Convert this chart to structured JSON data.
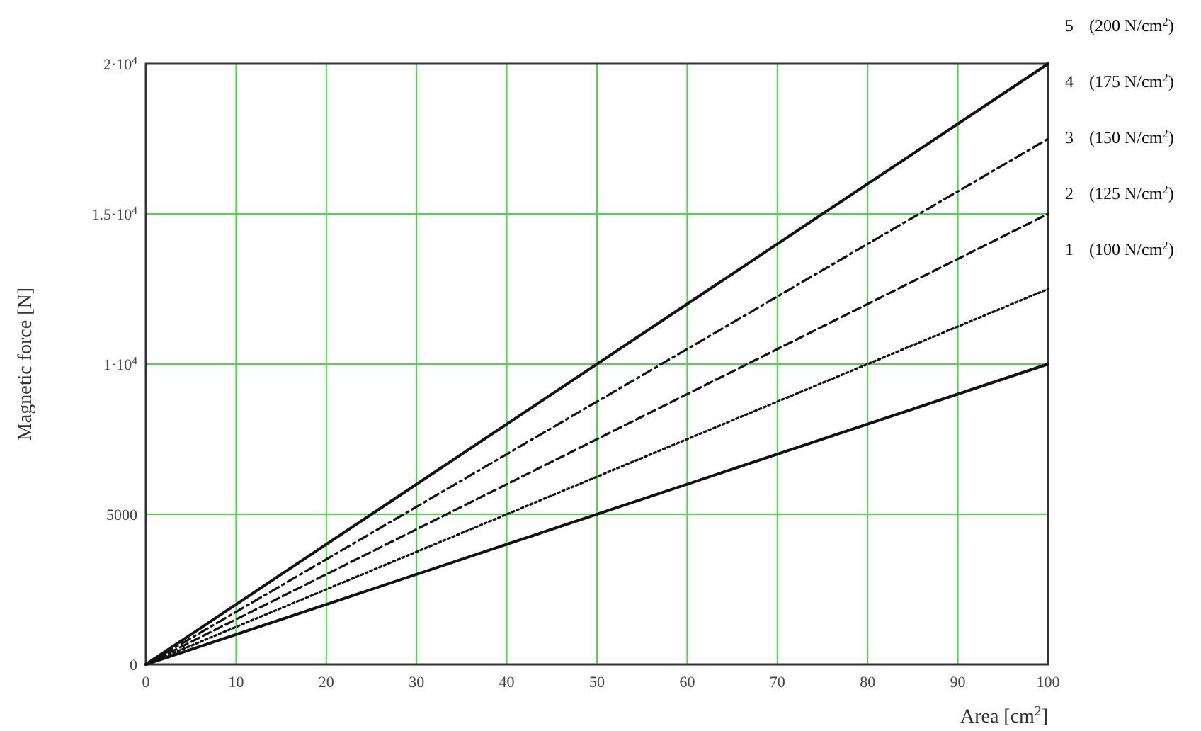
{
  "chart_data": {
    "type": "line",
    "xlabel": "Area [cm$^{2}$]",
    "ylabel": "Magnetic force  [N]",
    "x": [
      0,
      100
    ],
    "series": [
      {
        "name": "1 (100 N/cm$^{2}$)",
        "color": "#111111",
        "line_style": "solid",
        "values": [
          0,
          10000
        ]
      },
      {
        "name": "2 (125 N/cm$^{2}$)",
        "color": "#111111",
        "line_style": "dotted",
        "values": [
          0,
          12500
        ]
      },
      {
        "name": "3 (150 N/cm$^{2}$)",
        "color": "#111111",
        "line_style": "dashed",
        "values": [
          0,
          15000
        ]
      },
      {
        "name": "4 (175 N/cm$^{2}$)",
        "color": "#111111",
        "line_style": "dashdot",
        "values": [
          0,
          17500
        ]
      },
      {
        "name": "5 (200 N/cm$^{2}$)",
        "color": "#111111",
        "line_style": "solid",
        "values": [
          0,
          20000
        ]
      }
    ],
    "xlim": [
      0,
      100
    ],
    "xticks": [
      0,
      10,
      20,
      30,
      40,
      50,
      60,
      70,
      80,
      90,
      100
    ],
    "ylim": [
      0,
      20000
    ],
    "yticks": [
      0,
      5000,
      {
        "value": 10000,
        "label": "1·10$^{4}$"
      },
      {
        "value": 15000,
        "label": "1.5·10$^{4}$"
      },
      {
        "value": 20000,
        "label": "2·10$^{4}$"
      }
    ],
    "grid": true
  }
}
